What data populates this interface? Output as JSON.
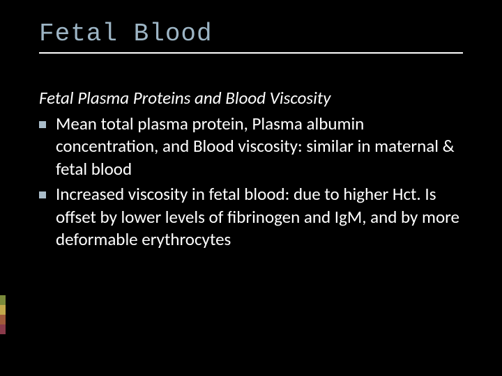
{
  "slide": {
    "title": "Fetal Blood",
    "subtitle": "Fetal Plasma Proteins and Blood Viscosity",
    "bullets": [
      "Mean total plasma protein, Plasma albumin concentration, and Blood viscosity: similar in maternal & fetal blood",
      "Increased viscosity in fetal blood: due to higher Hct. Is offset by lower levels of fibrinogen and IgM, and by more deformable erythrocytes"
    ]
  },
  "style": {
    "background_color": "#000000",
    "title_color": "#9db5c5",
    "title_font": "Consolas",
    "title_fontsize": 36,
    "underline_color": "#ffffff",
    "body_color": "#ffffff",
    "body_fontsize": 25,
    "bullet_marker_color": "#a9bcc9",
    "bullet_marker_size": 10,
    "accent_colors": [
      "#7a8a3a",
      "#c3a94a",
      "#a05a3a",
      "#8a3a4a"
    ],
    "accent_heights": [
      14,
      14,
      14,
      14
    ]
  }
}
